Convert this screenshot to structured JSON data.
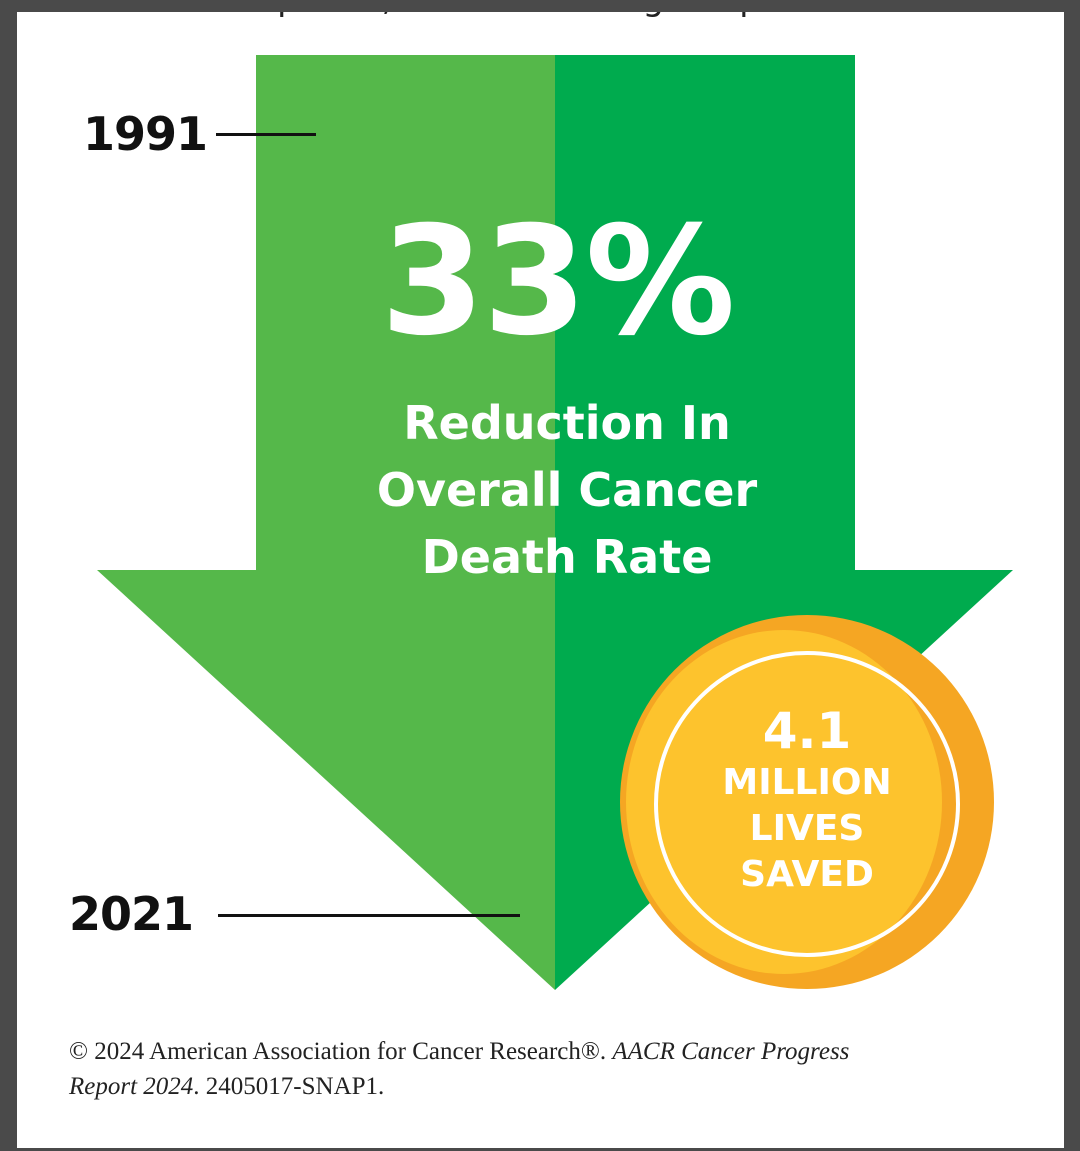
{
  "top_fragment": "treatment options, and addressing inequities in",
  "timeline": {
    "start_year": "1991",
    "end_year": "2021"
  },
  "headline": {
    "percent": "33%",
    "line1": "Reduction In",
    "line2": "Overall Cancer",
    "line3": "Death Rate"
  },
  "badge": {
    "number": "4.1",
    "line1": "MILLION",
    "line2": "LIVES",
    "line3": "SAVED"
  },
  "credit": {
    "part1": "© 2024 American Association for Cancer Research®. ",
    "part2_italic": "AACR Cancer Progress",
    "part3_italic": "Report 2024",
    "part4": ". 2405017-SNAP1."
  },
  "colors": {
    "arrow_light": "#55b84a",
    "arrow_dark": "#00ab4e",
    "badge_outer": "#f5a623",
    "badge_inner": "#fdc32d",
    "frame_bg": "#4a4a4a"
  }
}
